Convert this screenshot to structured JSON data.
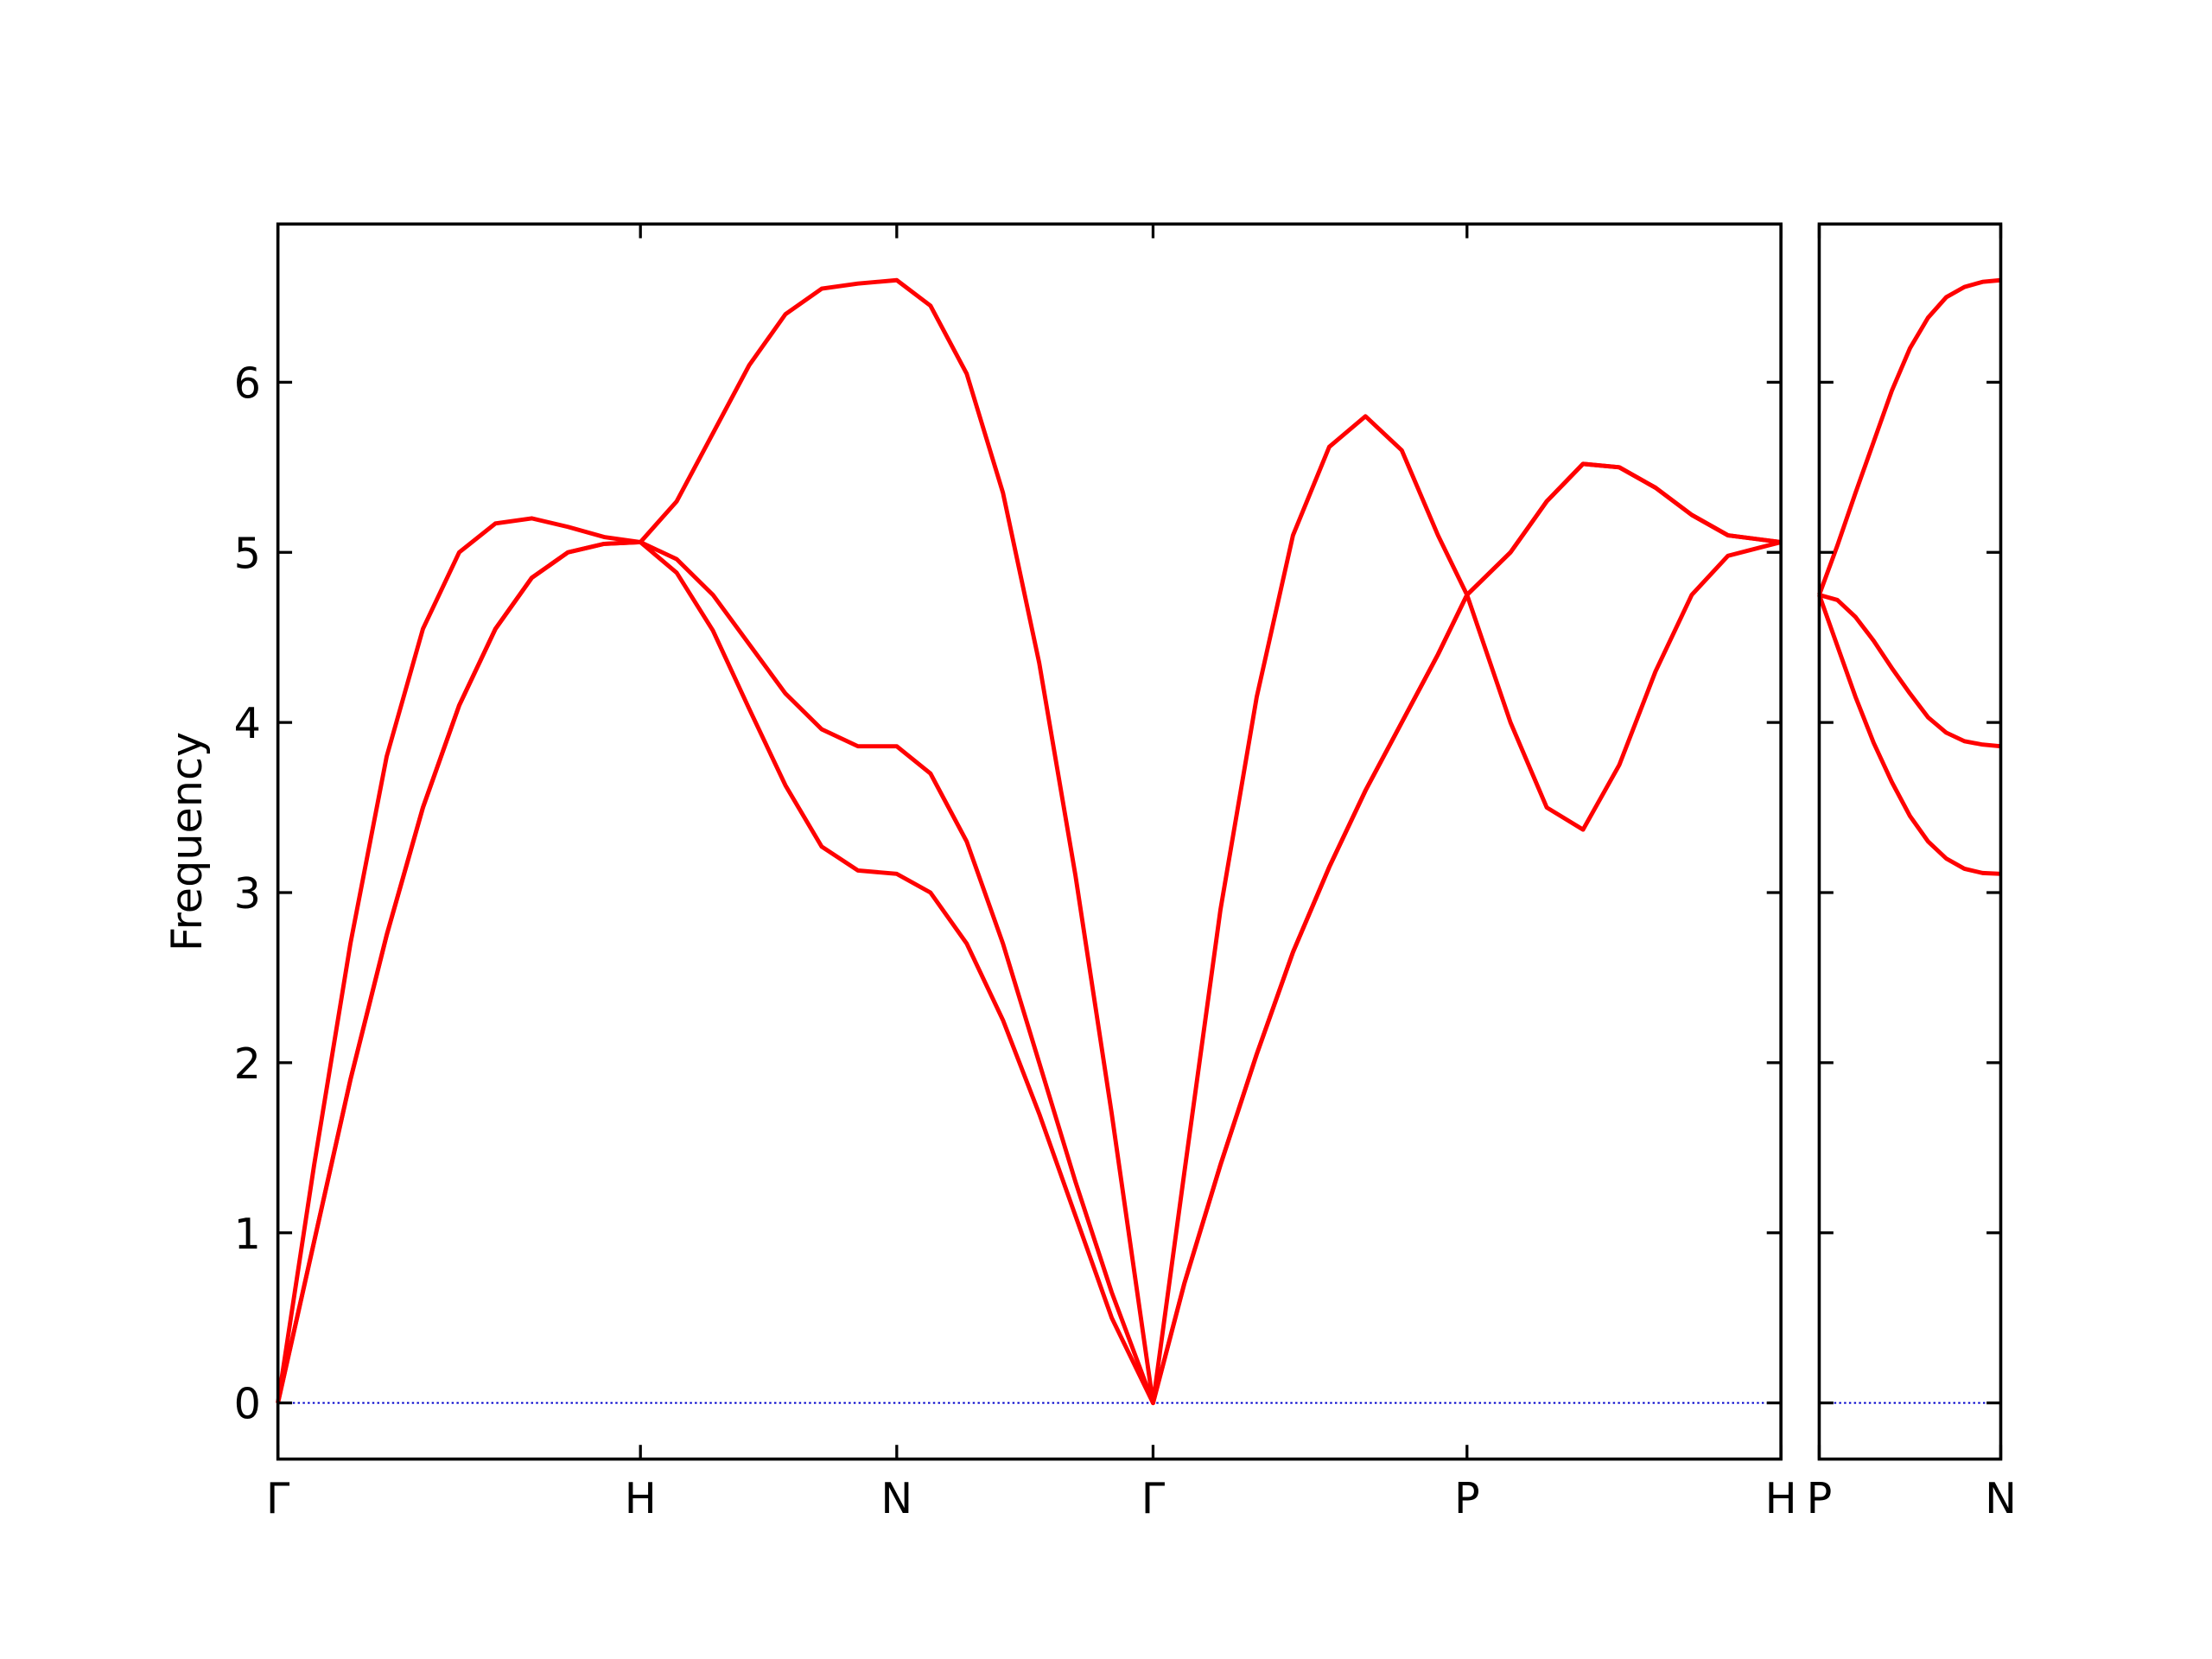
{
  "chart_data": [
    {
      "type": "line",
      "ylabel": "Frequency",
      "x": [
        0,
        0.1,
        0.2,
        0.3,
        0.4,
        0.5,
        0.6,
        0.7,
        0.8,
        0.9,
        1.0,
        1.1,
        1.2,
        1.3,
        1.4,
        1.5,
        1.6,
        1.707,
        1.8,
        1.9,
        2.0,
        2.1,
        2.2,
        2.3,
        2.414,
        2.5,
        2.6,
        2.7,
        2.8,
        2.9,
        3.0,
        3.1,
        3.2,
        3.28,
        3.4,
        3.5,
        3.6,
        3.7,
        3.8,
        3.9,
        4.0,
        4.146
      ],
      "series": [
        {
          "color": "#ff0000",
          "values": [
            0,
            0.95,
            1.9,
            2.75,
            3.5,
            4.1,
            4.55,
            4.85,
            5.0,
            5.05,
            5.06,
            4.88,
            4.54,
            4.08,
            3.63,
            3.27,
            3.13,
            3.11,
            3.0,
            2.7,
            2.25,
            1.7,
            1.1,
            0.5,
            0,
            0.7,
            1.4,
            2.05,
            2.65,
            3.15,
            3.6,
            4.0,
            4.4,
            4.75,
            4.0,
            3.5,
            3.37,
            3.75,
            4.3,
            4.75,
            4.98,
            5.06
          ]
        },
        {
          "color": "#ff0000",
          "values": [
            0,
            0.95,
            1.9,
            2.75,
            3.5,
            4.1,
            4.55,
            4.85,
            5.0,
            5.05,
            5.06,
            4.96,
            4.75,
            4.46,
            4.17,
            3.96,
            3.86,
            3.86,
            3.7,
            3.3,
            2.7,
            2.0,
            1.3,
            0.65,
            0,
            0.7,
            1.4,
            2.05,
            2.65,
            3.15,
            3.6,
            4.0,
            4.4,
            4.75,
            5.0,
            5.3,
            5.52,
            5.5,
            5.38,
            5.22,
            5.1,
            5.06
          ]
        },
        {
          "color": "#ff0000",
          "values": [
            0,
            1.4,
            2.7,
            3.8,
            4.55,
            5.0,
            5.17,
            5.2,
            5.15,
            5.09,
            5.06,
            5.3,
            5.7,
            6.1,
            6.4,
            6.55,
            6.58,
            6.6,
            6.45,
            6.05,
            5.35,
            4.35,
            3.1,
            1.7,
            0,
            1.35,
            2.9,
            4.15,
            5.1,
            5.62,
            5.8,
            5.6,
            5.1,
            4.75,
            5.0,
            5.3,
            5.52,
            5.5,
            5.38,
            5.22,
            5.1,
            5.06
          ]
        }
      ],
      "xlim": [
        0,
        4.146
      ],
      "xticks": [
        {
          "value": 0,
          "label": "Γ"
        },
        {
          "value": 1,
          "label": "H"
        },
        {
          "value": 1.707,
          "label": "N"
        },
        {
          "value": 2.414,
          "label": "Γ"
        },
        {
          "value": 3.28,
          "label": "P"
        },
        {
          "value": 4.146,
          "label": "H"
        }
      ],
      "ylim": [
        -0.33,
        6.93
      ],
      "yticks": [
        0,
        1,
        2,
        3,
        4,
        5,
        6
      ],
      "ytick_labels": true,
      "hline": 0,
      "hline_color": "#0000cc"
    },
    {
      "type": "line",
      "x": [
        0,
        0.05,
        0.1,
        0.15,
        0.2,
        0.25,
        0.3,
        0.35,
        0.4,
        0.45,
        0.5
      ],
      "series": [
        {
          "color": "#ff0000",
          "values": [
            4.75,
            4.45,
            4.15,
            3.88,
            3.65,
            3.45,
            3.3,
            3.2,
            3.14,
            3.115,
            3.11
          ]
        },
        {
          "color": "#ff0000",
          "values": [
            4.75,
            4.72,
            4.62,
            4.48,
            4.32,
            4.17,
            4.03,
            3.94,
            3.89,
            3.87,
            3.86
          ]
        },
        {
          "color": "#ff0000",
          "values": [
            4.75,
            5.04,
            5.35,
            5.65,
            5.95,
            6.2,
            6.38,
            6.5,
            6.56,
            6.59,
            6.6
          ]
        }
      ],
      "xlim": [
        0,
        0.5
      ],
      "xticks": [
        {
          "value": 0,
          "label": "P"
        },
        {
          "value": 0.5,
          "label": "N"
        }
      ],
      "ylim": [
        -0.33,
        6.93
      ],
      "yticks": [
        0,
        1,
        2,
        3,
        4,
        5,
        6
      ],
      "ytick_labels": false,
      "hline": 0,
      "hline_color": "#0000cc"
    }
  ]
}
